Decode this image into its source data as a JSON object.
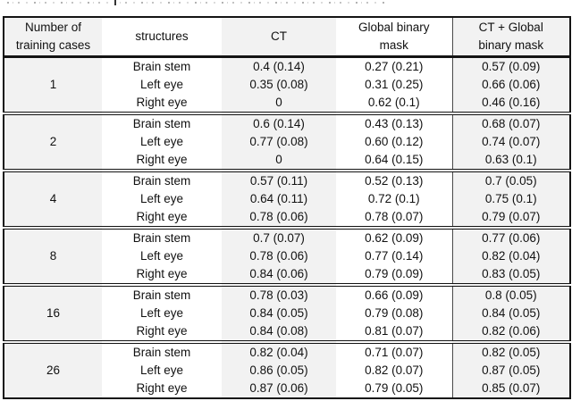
{
  "table": {
    "headers": [
      "Number of\ntraining cases",
      "structures",
      "CT",
      "Global binary\nmask",
      "CT + Global\nbinary mask"
    ],
    "groups": [
      {
        "training_cases": "1",
        "rows": [
          {
            "structure": "Brain stem",
            "ct": "0.4 (0.14)",
            "global_binary_mask": "0.27 (0.21)",
            "ct_global_binary_mask": "0.57 (0.09)"
          },
          {
            "structure": "Left eye",
            "ct": "0.35 (0.08)",
            "global_binary_mask": "0.31 (0.25)",
            "ct_global_binary_mask": "0.66 (0.06)"
          },
          {
            "structure": "Right eye",
            "ct": "0",
            "global_binary_mask": "0.62 (0.1)",
            "ct_global_binary_mask": "0.46 (0.16)"
          }
        ]
      },
      {
        "training_cases": "2",
        "rows": [
          {
            "structure": "Brain stem",
            "ct": "0.6 (0.14)",
            "global_binary_mask": "0.43 (0.13)",
            "ct_global_binary_mask": "0.68 (0.07)"
          },
          {
            "structure": "Left eye",
            "ct": "0.77 (0.08)",
            "global_binary_mask": "0.60 (0.12)",
            "ct_global_binary_mask": "0.74 (0.07)"
          },
          {
            "structure": "Right eye",
            "ct": "0",
            "global_binary_mask": "0.64 (0.15)",
            "ct_global_binary_mask": "0.63 (0.1)"
          }
        ]
      },
      {
        "training_cases": "4",
        "rows": [
          {
            "structure": "Brain stem",
            "ct": "0.57 (0.11)",
            "global_binary_mask": "0.52 (0.13)",
            "ct_global_binary_mask": "0.7 (0.05)"
          },
          {
            "structure": "Left eye",
            "ct": "0.64 (0.11)",
            "global_binary_mask": "0.72 (0.1)",
            "ct_global_binary_mask": "0.75 (0.1)"
          },
          {
            "structure": "Right eye",
            "ct": "0.78 (0.06)",
            "global_binary_mask": "0.78 (0.07)",
            "ct_global_binary_mask": "0.79 (0.07)"
          }
        ]
      },
      {
        "training_cases": "8",
        "rows": [
          {
            "structure": "Brain stem",
            "ct": "0.7 (0.07)",
            "global_binary_mask": "0.62 (0.09)",
            "ct_global_binary_mask": "0.77 (0.06)"
          },
          {
            "structure": "Left eye",
            "ct": "0.78 (0.06)",
            "global_binary_mask": "0.77 (0.14)",
            "ct_global_binary_mask": "0.82 (0.04)"
          },
          {
            "structure": "Right eye",
            "ct": "0.84 (0.06)",
            "global_binary_mask": "0.79 (0.09)",
            "ct_global_binary_mask": "0.83 (0.05)"
          }
        ]
      },
      {
        "training_cases": "16",
        "rows": [
          {
            "structure": "Brain stem",
            "ct": "0.78 (0.03)",
            "global_binary_mask": "0.66 (0.09)",
            "ct_global_binary_mask": "0.8 (0.05)"
          },
          {
            "structure": "Left eye",
            "ct": "0.84 (0.05)",
            "global_binary_mask": "0.79 (0.08)",
            "ct_global_binary_mask": "0.84 (0.05)"
          },
          {
            "structure": "Right eye",
            "ct": "0.84 (0.08)",
            "global_binary_mask": "0.81 (0.07)",
            "ct_global_binary_mask": "0.82 (0.06)"
          }
        ]
      },
      {
        "training_cases": "26",
        "rows": [
          {
            "structure": "Brain stem",
            "ct": "0.82 (0.04)",
            "global_binary_mask": "0.71 (0.07)",
            "ct_global_binary_mask": "0.82 (0.05)"
          },
          {
            "structure": "Left eye",
            "ct": "0.86 (0.05)",
            "global_binary_mask": "0.82 (0.07)",
            "ct_global_binary_mask": "0.87 (0.05)"
          },
          {
            "structure": "Right eye",
            "ct": "0.87 (0.06)",
            "global_binary_mask": "0.79 (0.05)",
            "ct_global_binary_mask": "0.85 (0.07)"
          }
        ]
      }
    ]
  },
  "colors": {
    "column_shade": "#f2f2f2",
    "border": "#141414",
    "text": "#111111"
  }
}
